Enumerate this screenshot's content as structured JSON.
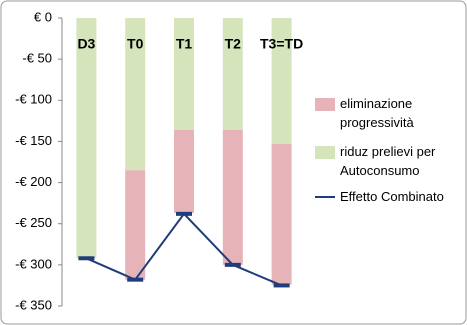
{
  "chart_data": {
    "type": "stacked-bar-line",
    "categories": [
      "D3",
      "T0",
      "T1",
      "T2",
      "T3=TD"
    ],
    "series": [
      {
        "name": "eliminazione progressività",
        "color": "#e6b4b8",
        "values": [
          0,
          -133,
          -101,
          -164,
          -171
        ]
      },
      {
        "name": "riduz prelievi per Autoconsumo",
        "color": "#d6e4bc",
        "values": [
          -292,
          -185,
          -136,
          -136,
          -153
        ]
      },
      {
        "name": "Effetto Combinato",
        "color": "#1f3d7a",
        "type": "line",
        "values": [
          -292,
          -318,
          -238,
          -300,
          -325
        ]
      }
    ],
    "stack_order": [
      1,
      0
    ],
    "ylim": [
      0,
      -350
    ],
    "yticks": [
      {
        "value": 0,
        "label": "€ 0"
      },
      {
        "value": -50,
        "label": "-€ 50"
      },
      {
        "value": -100,
        "label": "-€ 100"
      },
      {
        "value": -150,
        "label": "-€ 150"
      },
      {
        "value": -200,
        "label": "-€ 200"
      },
      {
        "value": -250,
        "label": "-€ 250"
      },
      {
        "value": -300,
        "label": "-€ 300"
      },
      {
        "value": -350,
        "label": "-€ 350"
      }
    ],
    "grid": false
  }
}
